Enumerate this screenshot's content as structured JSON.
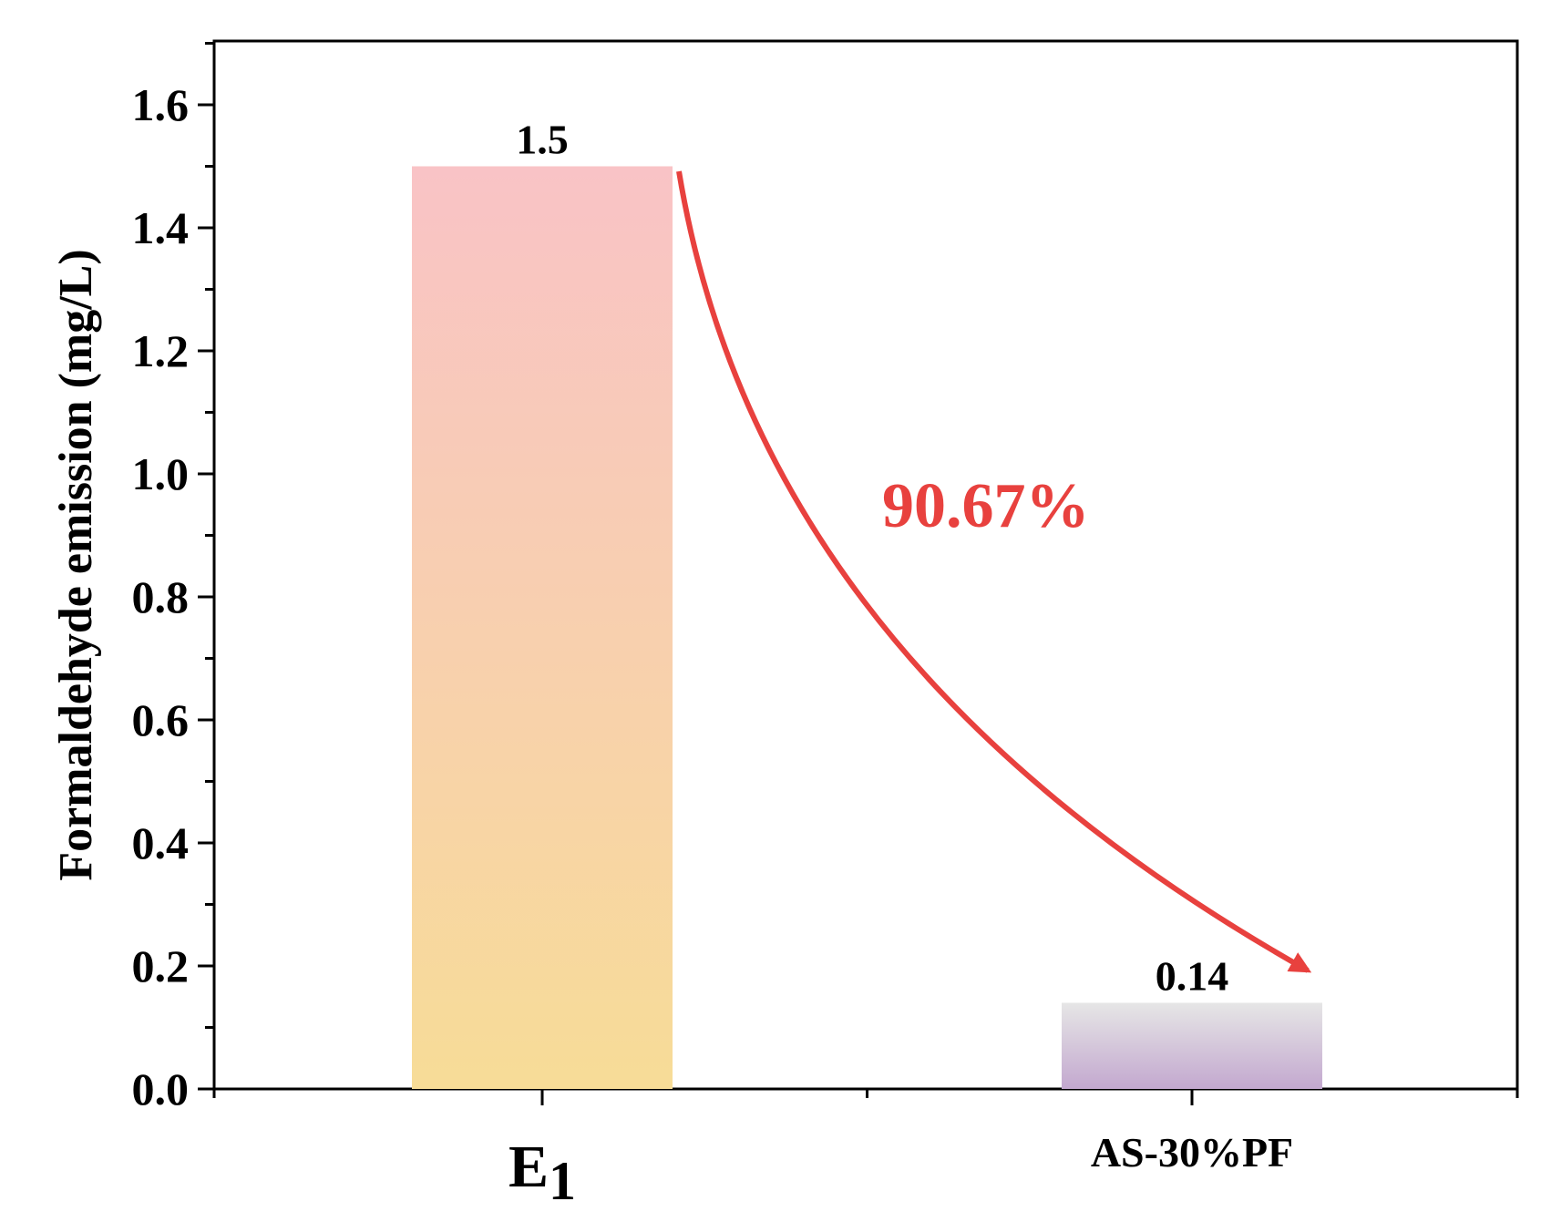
{
  "chart_data": {
    "type": "bar",
    "categories": [
      "E",
      "AS-30%PF"
    ],
    "category_subscripts": [
      "1",
      ""
    ],
    "values": [
      1.5,
      0.14
    ],
    "data_labels": [
      "1.5",
      "0.14"
    ],
    "ylabel": "Formaldehyde emission (mg/L)",
    "xlabel": "",
    "ylim": [
      0,
      1.7
    ],
    "yticks": [
      0.0,
      0.2,
      0.4,
      0.6,
      0.8,
      1.0,
      1.2,
      1.4,
      1.6
    ],
    "ytick_labels": [
      "0.0",
      "0.2",
      "0.4",
      "0.6",
      "0.8",
      "1.0",
      "1.2",
      "1.4",
      "1.6"
    ],
    "grid": false,
    "bar_colors": [
      {
        "top": "#f9c3c6",
        "bottom": "#f7dc97"
      },
      {
        "top": "#e6e6e6",
        "bottom": "#c3a8cf"
      }
    ],
    "annotation": {
      "text": "90.67%",
      "color": "#e8413e"
    }
  }
}
